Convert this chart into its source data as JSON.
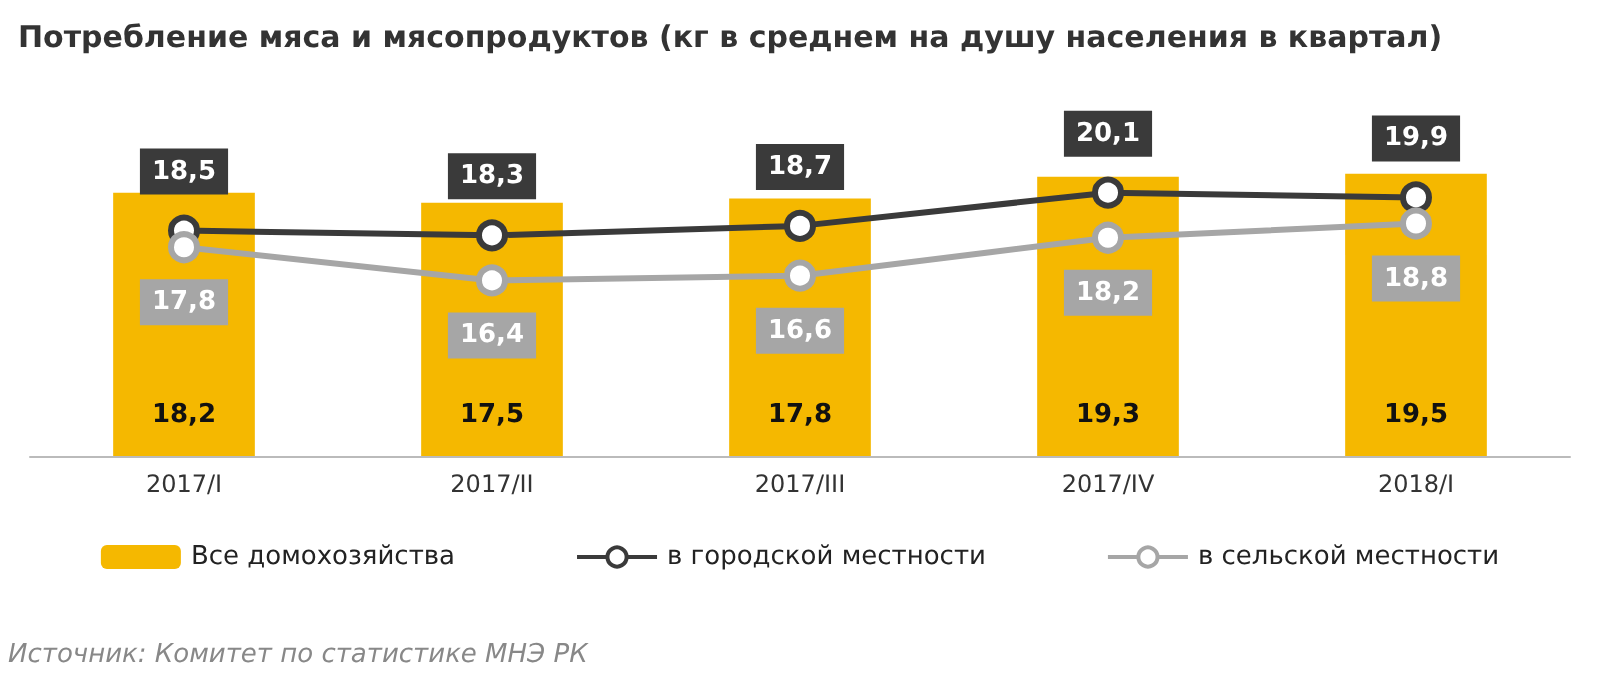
{
  "chart_data": {
    "type": "bar",
    "title": "Потребление мяса и мясопродуктов (кг в среднем на душу населения в квартал)",
    "categories": [
      "2017/I",
      "2017/II",
      "2017/III",
      "2017/IV",
      "2018/I"
    ],
    "series": [
      {
        "name": "Все домохозяйства",
        "color": "#f5b800",
        "values": [
          18.2,
          17.5,
          17.8,
          19.3,
          19.5
        ],
        "value_labels": [
          "18,2",
          "17,5",
          "17,8",
          "19,3",
          "19,5"
        ]
      },
      {
        "name": "в городской местности",
        "type": "line",
        "axis": "y2",
        "color": "#3a3a3a",
        "values": [
          18.5,
          18.3,
          18.7,
          20.1,
          19.9
        ],
        "value_labels": [
          "18,5",
          "18,3",
          "18,7",
          "20,1",
          "19,9"
        ]
      },
      {
        "name": "в сельской местности",
        "type": "line",
        "axis": "y2",
        "color": "#a6a6a6",
        "values": [
          17.8,
          16.4,
          16.6,
          18.2,
          18.8
        ],
        "value_labels": [
          "17,8",
          "16,4",
          "16,6",
          "18,2",
          "18,8"
        ]
      }
    ],
    "tick_labels": "x",
    "legend": "bottom",
    "marker": "circle",
    "grid": false,
    "annotations": [
      "Источник: Комитет по статистике МНЭ РК"
    ]
  }
}
